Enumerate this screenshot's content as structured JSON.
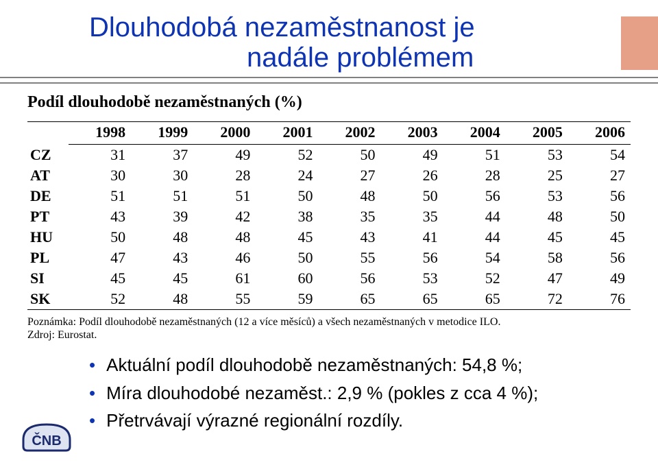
{
  "title": {
    "line1": "Dlouhodobá nezaměstnanost je",
    "line2": "nadále problémem",
    "color": "#0f34b2",
    "fontsize": 40
  },
  "corner_color": "#e6a088",
  "hr_color": "#808080",
  "subtitle": "Podíl dlouhodobě nezaměstnaných (%)",
  "table": {
    "years": [
      "1998",
      "1999",
      "2000",
      "2001",
      "2002",
      "2003",
      "2004",
      "2005",
      "2006"
    ],
    "rows": [
      {
        "code": "CZ",
        "vals": [
          "31",
          "37",
          "49",
          "52",
          "50",
          "49",
          "51",
          "53",
          "54"
        ]
      },
      {
        "code": "AT",
        "vals": [
          "30",
          "30",
          "28",
          "24",
          "27",
          "26",
          "28",
          "25",
          "27"
        ]
      },
      {
        "code": "DE",
        "vals": [
          "51",
          "51",
          "51",
          "50",
          "48",
          "50",
          "56",
          "53",
          "56"
        ]
      },
      {
        "code": "PT",
        "vals": [
          "43",
          "39",
          "42",
          "38",
          "35",
          "35",
          "44",
          "48",
          "50"
        ]
      },
      {
        "code": "HU",
        "vals": [
          "50",
          "48",
          "48",
          "45",
          "43",
          "41",
          "44",
          "45",
          "45"
        ]
      },
      {
        "code": "PL",
        "vals": [
          "47",
          "43",
          "46",
          "50",
          "55",
          "56",
          "54",
          "58",
          "56"
        ]
      },
      {
        "code": "SI",
        "vals": [
          "45",
          "45",
          "61",
          "60",
          "56",
          "53",
          "52",
          "47",
          "49"
        ]
      },
      {
        "code": "SK",
        "vals": [
          "52",
          "48",
          "55",
          "59",
          "65",
          "65",
          "65",
          "72",
          "76"
        ]
      }
    ],
    "fontsize": 22
  },
  "note_line1": "Poznámka: Podíl dlouhodobě nezaměstnaných (12 a více měsíců) a všech nezaměstnaných v metodice ILO.",
  "note_line2": "Zdroj: Eurostat.",
  "bullets": [
    "Aktuální podíl dlouhodobě nezaměstnaných: 54,8 %;",
    "Míra dlouhodobé nezaměst.: 2,9 % (pokles z cca 4 %);",
    "Přetrvávají výrazné regionální rozdíly."
  ],
  "logo": {
    "text": "ČNB",
    "stroke": "#1a2a6c",
    "fill": "#dde3f0"
  }
}
